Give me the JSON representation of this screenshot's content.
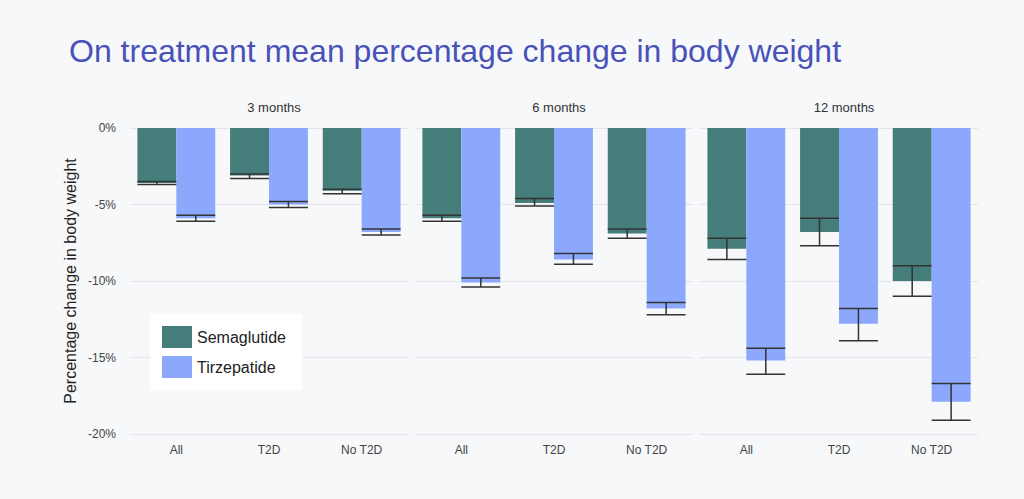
{
  "chart_data": {
    "type": "bar",
    "title": "On treatment mean percentage change in body weight",
    "y_label": "Percentage change in body weight",
    "ylim": [
      -20,
      0
    ],
    "yticks": [
      {
        "value": -20,
        "label": "-20%"
      },
      {
        "value": -15,
        "label": "-15%"
      },
      {
        "value": -10,
        "label": "-10%"
      },
      {
        "value": -5,
        "label": "-5%"
      },
      {
        "value": 0,
        "label": "0%"
      }
    ],
    "grid": true,
    "legend": "bottom-left",
    "panels": [
      {
        "title": "3 months",
        "categories": [
          "All",
          "T2D",
          "No T2D"
        ],
        "series": [
          {
            "name": "Semaglutide",
            "color": "#457d7a",
            "values": [
              -3.6,
              -3.1,
              -4.1
            ],
            "error_lower": [
              -3.7,
              -3.3,
              -4.3
            ],
            "error_upper": [
              -3.5,
              -3.0,
              -4.0
            ]
          },
          {
            "name": "Tirzepatide",
            "color": "#8ba8fc",
            "values": [
              -5.9,
              -5.0,
              -6.8
            ],
            "error_lower": [
              -6.1,
              -5.2,
              -7.0
            ],
            "error_upper": [
              -5.7,
              -4.8,
              -6.6
            ]
          }
        ]
      },
      {
        "title": "6 months",
        "categories": [
          "All",
          "T2D",
          "No T2D"
        ],
        "series": [
          {
            "name": "Semaglutide",
            "color": "#457d7a",
            "values": [
              -5.9,
              -4.9,
              -6.9
            ],
            "error_lower": [
              -6.1,
              -5.1,
              -7.2
            ],
            "error_upper": [
              -5.7,
              -4.6,
              -6.6
            ]
          },
          {
            "name": "Tirzepatide",
            "color": "#8ba8fc",
            "values": [
              -10.1,
              -8.6,
              -11.8
            ],
            "error_lower": [
              -10.4,
              -8.9,
              -12.2
            ],
            "error_upper": [
              -9.8,
              -8.2,
              -11.4
            ]
          }
        ]
      },
      {
        "title": "12 months",
        "categories": [
          "All",
          "T2D",
          "No T2D"
        ],
        "series": [
          {
            "name": "Semaglutide",
            "color": "#457d7a",
            "values": [
              -7.9,
              -6.8,
              -10.0
            ],
            "error_lower": [
              -8.6,
              -7.7,
              -11.0
            ],
            "error_upper": [
              -7.2,
              -5.9,
              -9.0
            ]
          },
          {
            "name": "Tirzepatide",
            "color": "#8ba8fc",
            "values": [
              -15.2,
              -12.8,
              -17.9
            ],
            "error_lower": [
              -16.1,
              -13.9,
              -19.1
            ],
            "error_upper": [
              -14.4,
              -11.8,
              -16.7
            ]
          }
        ]
      }
    ]
  }
}
